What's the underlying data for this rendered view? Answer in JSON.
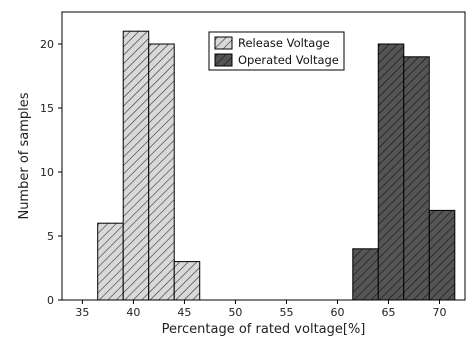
{
  "chart_data": {
    "type": "bar",
    "title": "",
    "xlabel": "Percentage of rated voltage[%]",
    "ylabel": "Number of samples",
    "xlim": [
      33,
      72.5
    ],
    "ylim": [
      0,
      22.5
    ],
    "xticks": [
      35,
      40,
      45,
      50,
      55,
      60,
      65,
      70
    ],
    "yticks": [
      0,
      5,
      10,
      15,
      20
    ],
    "grid": false,
    "legend_position": "top-center",
    "bin_width": 2.5,
    "series": [
      {
        "name": "Release Voltage",
        "color": "#d9d9d9",
        "bins": [
          {
            "x_start": 36.5,
            "x_end": 39.0,
            "value": 6
          },
          {
            "x_start": 39.0,
            "x_end": 41.5,
            "value": 21
          },
          {
            "x_start": 41.5,
            "x_end": 44.0,
            "value": 20
          },
          {
            "x_start": 44.0,
            "x_end": 46.5,
            "value": 3
          }
        ]
      },
      {
        "name": "Operated Voltage",
        "color": "#555555",
        "bins": [
          {
            "x_start": 61.5,
            "x_end": 64.0,
            "value": 4
          },
          {
            "x_start": 64.0,
            "x_end": 66.5,
            "value": 20
          },
          {
            "x_start": 66.5,
            "x_end": 69.0,
            "value": 19
          },
          {
            "x_start": 69.0,
            "x_end": 71.5,
            "value": 7
          }
        ]
      }
    ]
  }
}
